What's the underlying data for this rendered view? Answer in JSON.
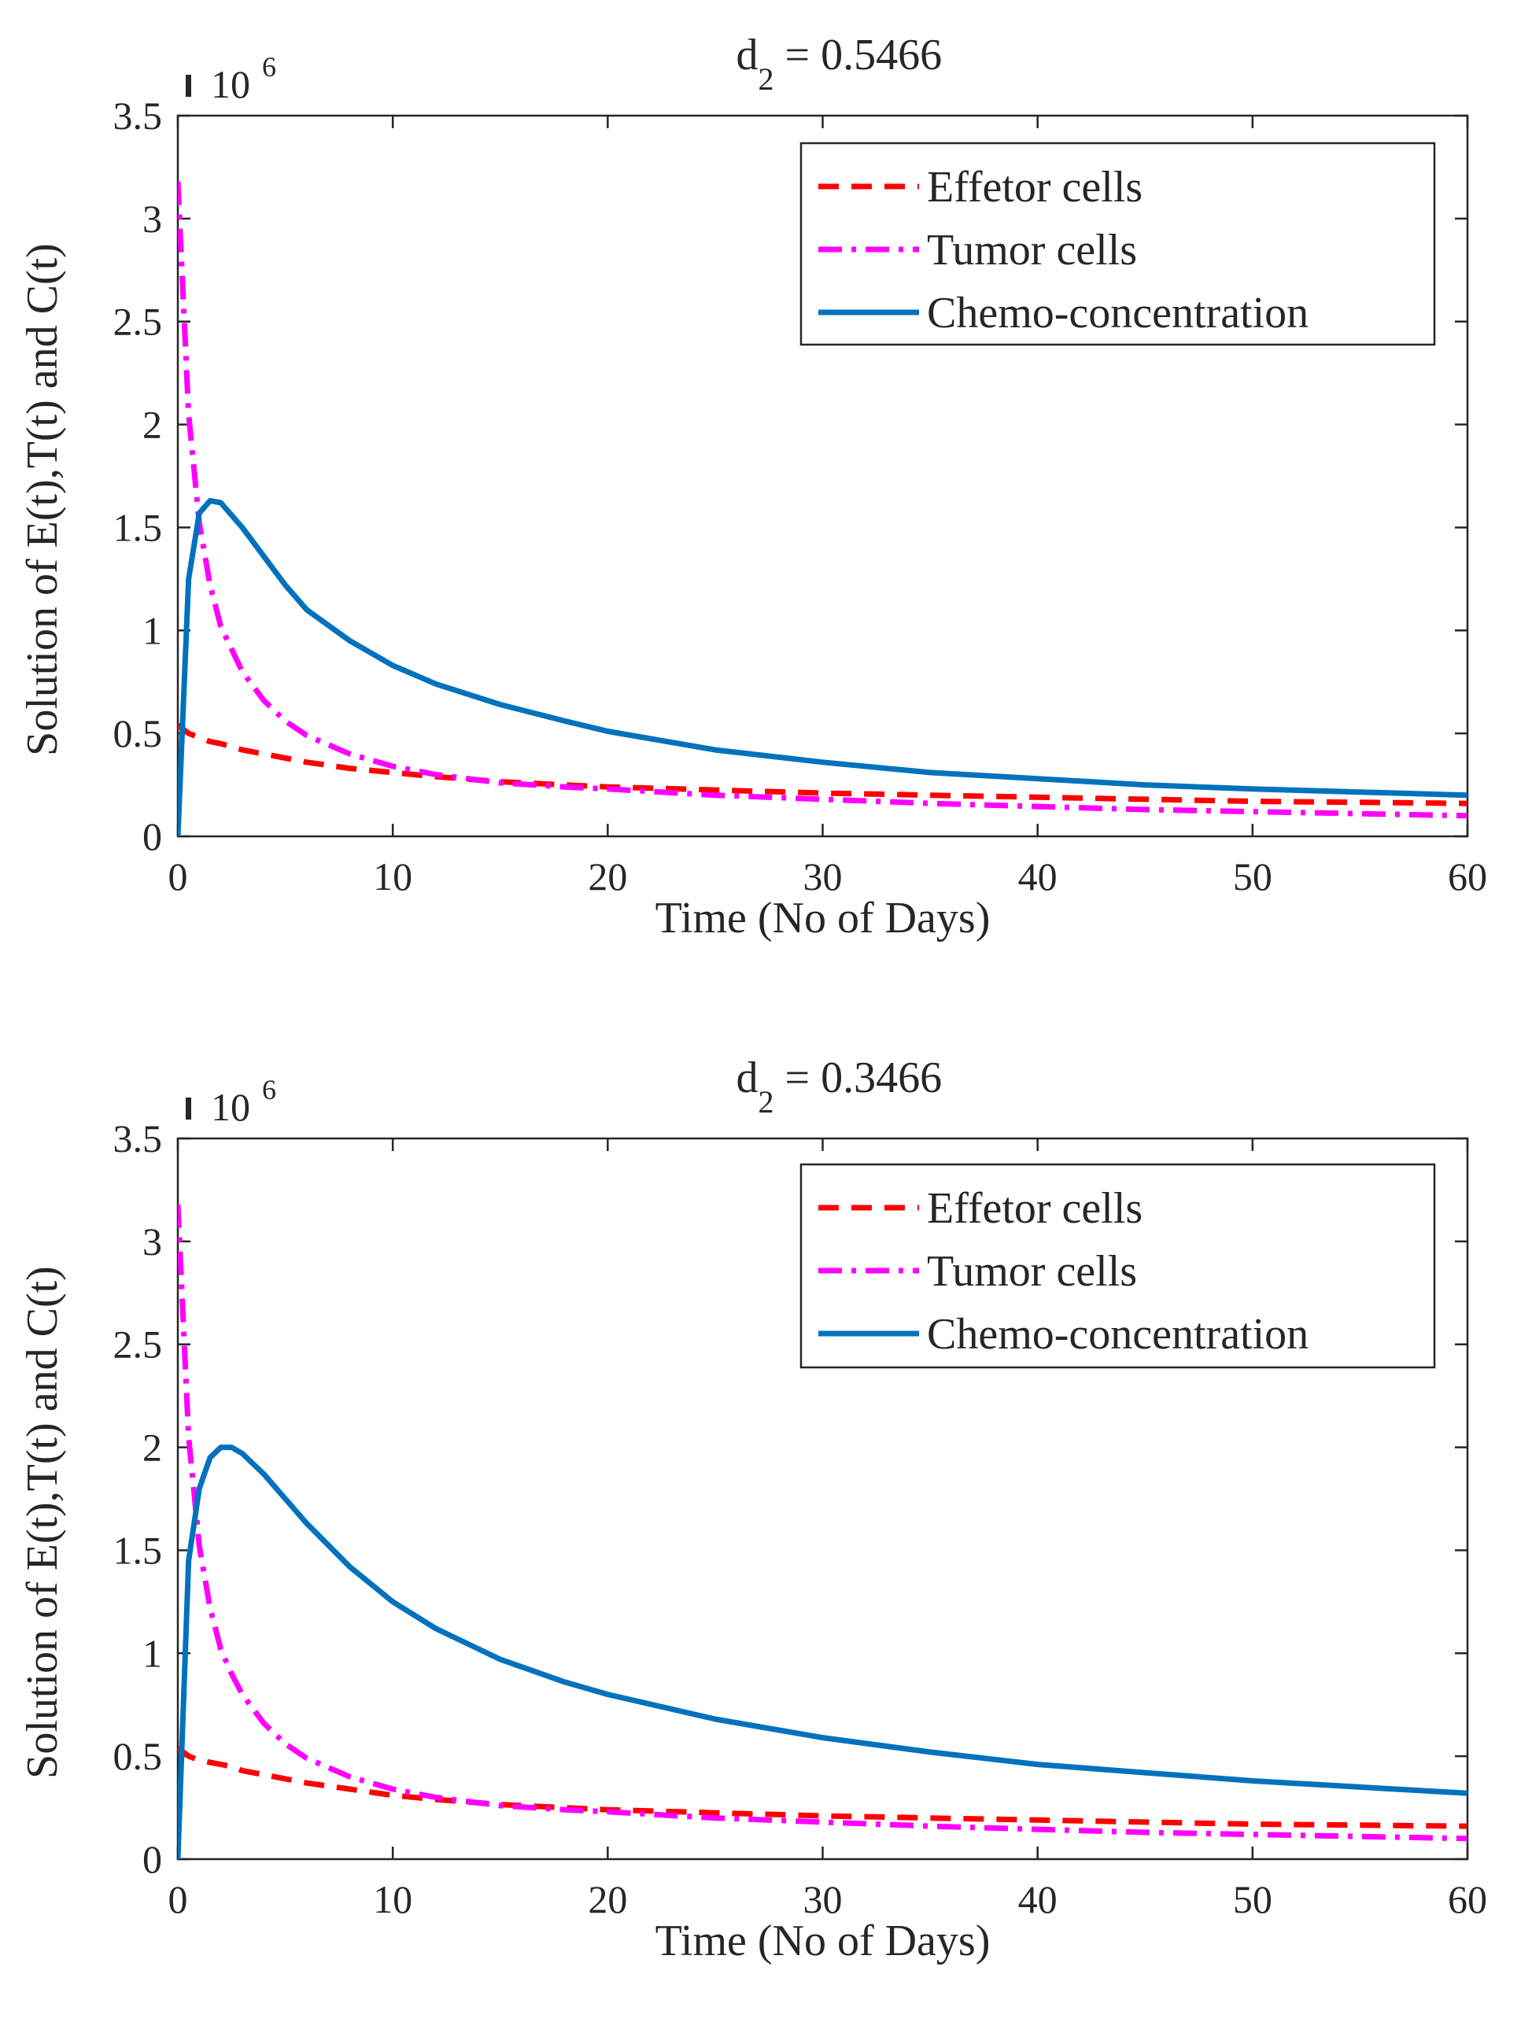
{
  "chart_data": [
    {
      "type": "line",
      "title": "d₂ = 0.5466",
      "title_main": "d",
      "title_sub": "2",
      "title_rest": " = 0.5466",
      "xlabel": "Time (No of Days)",
      "ylabel": "Solution of E(t),T(t) and C(t)",
      "exponent_label": "10",
      "exponent_power": "6",
      "xlim": [
        0,
        60
      ],
      "ylim": [
        0,
        3.5
      ],
      "y_scale": 1000000,
      "xticks": [
        0,
        10,
        20,
        30,
        40,
        50,
        60
      ],
      "xtick_labels": [
        "0",
        "10",
        "20",
        "30",
        "40",
        "50",
        "60"
      ],
      "yticks": [
        0,
        0.5,
        1,
        1.5,
        2,
        2.5,
        3,
        3.5
      ],
      "ytick_labels": [
        "0",
        "0.5",
        "1",
        "1.5",
        "2",
        "2.5",
        "3",
        "3.5"
      ],
      "grid": false,
      "legend_position": "top-right",
      "x": [
        0,
        0.5,
        1,
        1.5,
        2,
        3,
        4,
        5,
        6,
        8,
        10,
        12,
        15,
        18,
        20,
        25,
        30,
        35,
        40,
        45,
        50,
        55,
        60
      ],
      "series": [
        {
          "name": "Effetor cells",
          "color": "#ff0000",
          "style": "dashed",
          "values": [
            0.54,
            0.5,
            0.48,
            0.46,
            0.45,
            0.42,
            0.4,
            0.38,
            0.36,
            0.33,
            0.31,
            0.29,
            0.265,
            0.25,
            0.24,
            0.225,
            0.21,
            0.2,
            0.19,
            0.18,
            0.17,
            0.165,
            0.16
          ]
        },
        {
          "name": "Tumor cells",
          "color": "#ff00ff",
          "style": "dashdot",
          "values": [
            3.18,
            2.05,
            1.52,
            1.22,
            1.02,
            0.8,
            0.66,
            0.56,
            0.49,
            0.4,
            0.34,
            0.3,
            0.26,
            0.24,
            0.23,
            0.2,
            0.18,
            0.16,
            0.145,
            0.13,
            0.12,
            0.11,
            0.1
          ]
        },
        {
          "name": "Chemo-concentration",
          "color": "#0072bd",
          "style": "solid",
          "values": [
            0,
            1.25,
            1.57,
            1.63,
            1.62,
            1.5,
            1.36,
            1.22,
            1.1,
            0.95,
            0.83,
            0.74,
            0.64,
            0.56,
            0.51,
            0.42,
            0.36,
            0.31,
            0.28,
            0.25,
            0.23,
            0.215,
            0.2
          ]
        }
      ]
    },
    {
      "type": "line",
      "title": "d₂ = 0.3466",
      "title_main": "d",
      "title_sub": "2",
      "title_rest": " = 0.3466",
      "xlabel": "Time (No of Days)",
      "ylabel": "Solution of E(t),T(t) and C(t)",
      "exponent_label": "10",
      "exponent_power": "6",
      "xlim": [
        0,
        60
      ],
      "ylim": [
        0,
        3.5
      ],
      "y_scale": 1000000,
      "xticks": [
        0,
        10,
        20,
        30,
        40,
        50,
        60
      ],
      "xtick_labels": [
        "0",
        "10",
        "20",
        "30",
        "40",
        "50",
        "60"
      ],
      "yticks": [
        0,
        0.5,
        1,
        1.5,
        2,
        2.5,
        3,
        3.5
      ],
      "ytick_labels": [
        "0",
        "0.5",
        "1",
        "1.5",
        "2",
        "2.5",
        "3",
        "3.5"
      ],
      "grid": false,
      "legend_position": "top-right",
      "x": [
        0,
        0.5,
        1,
        1.5,
        2,
        2.5,
        3,
        4,
        5,
        6,
        8,
        10,
        12,
        15,
        18,
        20,
        25,
        30,
        35,
        40,
        45,
        50,
        55,
        60
      ],
      "series": [
        {
          "name": "Effetor cells",
          "color": "#ff0000",
          "style": "dashed",
          "values": [
            0.54,
            0.5,
            0.48,
            0.47,
            0.46,
            0.45,
            0.43,
            0.41,
            0.39,
            0.37,
            0.34,
            0.31,
            0.29,
            0.265,
            0.25,
            0.24,
            0.225,
            0.21,
            0.2,
            0.19,
            0.18,
            0.17,
            0.165,
            0.16
          ]
        },
        {
          "name": "Tumor cells",
          "color": "#ff00ff",
          "style": "dashdot",
          "values": [
            3.18,
            2.05,
            1.52,
            1.22,
            1.02,
            0.9,
            0.8,
            0.66,
            0.56,
            0.49,
            0.4,
            0.34,
            0.3,
            0.26,
            0.24,
            0.23,
            0.2,
            0.18,
            0.16,
            0.145,
            0.13,
            0.12,
            0.11,
            0.1
          ]
        },
        {
          "name": "Chemo-concentration",
          "color": "#0072bd",
          "style": "solid",
          "values": [
            0,
            1.45,
            1.8,
            1.95,
            2.0,
            2.0,
            1.97,
            1.87,
            1.75,
            1.63,
            1.42,
            1.25,
            1.12,
            0.97,
            0.86,
            0.8,
            0.68,
            0.59,
            0.52,
            0.46,
            0.42,
            0.38,
            0.35,
            0.32
          ]
        }
      ]
    }
  ]
}
